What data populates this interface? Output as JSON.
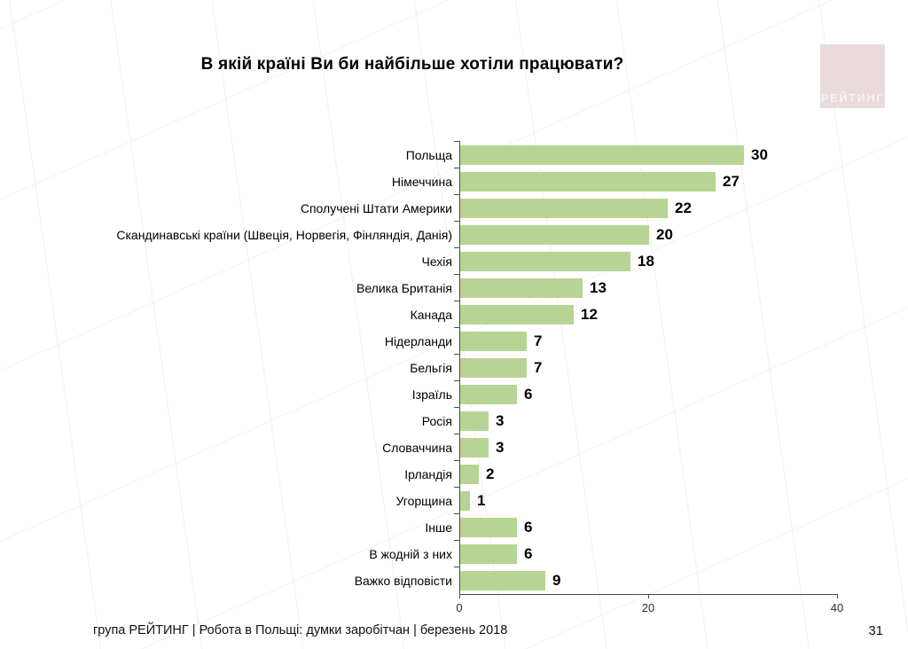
{
  "slide": {
    "title": "В якій країні Ви би найбільше хотіли працювати?",
    "footer": "група РЕЙТИНГ  | Робота в Польщі: думки заробітчан  |  березень 2018",
    "page_number": "31",
    "logo_text": "РЕЙТИНГ"
  },
  "colors": {
    "bar": "#b8d494",
    "axis": "#4a4a4a",
    "logo_bg": "#e9dbdb",
    "logo_text": "#f7f0f0"
  },
  "chart_data": {
    "type": "bar",
    "orientation": "horizontal",
    "title": "В якій країні Ви би найбільше хотіли працювати?",
    "categories": [
      "Польща",
      "Німеччина",
      "Сполучені Штати Америки",
      "Скандинавські країни (Швеція, Норвегія, Фінляндія, Данія)",
      "Чехія",
      "Велика Британія",
      "Канада",
      "Нідерланди",
      "Бельгія",
      "Ізраїль",
      "Росія",
      "Словаччина",
      "Ірландія",
      "Угорщина",
      "Інше",
      "В жодній з них",
      "Важко відповісти"
    ],
    "values": [
      30,
      27,
      22,
      20,
      18,
      13,
      12,
      7,
      7,
      6,
      3,
      3,
      2,
      1,
      6,
      6,
      9
    ],
    "value_labels": true,
    "xlabel": "",
    "ylabel": "",
    "xlim": [
      0,
      40
    ],
    "x_ticks": [
      0,
      20,
      40
    ],
    "x_tick_labels": [
      "0",
      "20",
      "40"
    ],
    "grid": false,
    "legend": "none"
  }
}
